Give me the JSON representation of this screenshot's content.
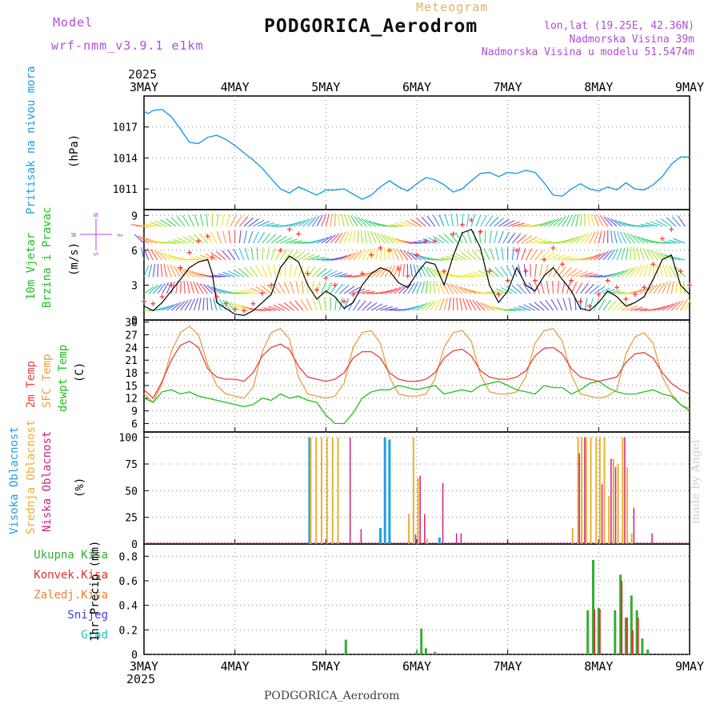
{
  "header": {
    "model_label": "Model",
    "model_name": "wrf-nmm_v3.9.1 e1km",
    "meteogram_label": "Meteogram",
    "title": "PODGORICA_Aerodrom",
    "lonlat": "lon,lat (19.25E, 42.36N)",
    "elevation": "Nadmorska Visina 39m",
    "model_elevation": "Nadmorska Visina u modelu 51.5474m",
    "year": "2025",
    "watermark": "made by Angel"
  },
  "footer": {
    "title": "PODGORICA_Aerodrom",
    "year": "2025"
  },
  "colors": {
    "pressure": "#1a9ee0",
    "wind_speed": "#000000",
    "wind_gust": "#ff3030",
    "t2m": "#e84040",
    "sfc": "#e8a040",
    "dewpt": "#20c020",
    "high_cloud": "#20a0e0",
    "mid_cloud": "#e8b030",
    "low_cloud": "#d02080",
    "total_precip": "#30b030",
    "conv_precip": "#e03030",
    "frozen_precip": "#f08030",
    "snow": "#4040e0",
    "hail": "#20c0c0",
    "axis_label_purple": "#b04cd8"
  },
  "chart_data": [
    {
      "type": "line",
      "id": "pressure",
      "ylabel_side": "Pritisak na nivou mora",
      "ylabel": "(hPa)",
      "x_ticks": [
        "3MAY",
        "4MAY",
        "5MAY",
        "6MAY",
        "7MAY",
        "8MAY",
        "9MAY"
      ],
      "ylim": [
        1009,
        1020
      ],
      "y_ticks": [
        1011,
        1014,
        1017
      ],
      "x_days": [
        0,
        0.05,
        0.1,
        0.2,
        0.3,
        0.4,
        0.5,
        0.6,
        0.7,
        0.8,
        0.9,
        1.0,
        1.1,
        1.2,
        1.3,
        1.4,
        1.5,
        1.6,
        1.7,
        1.8,
        1.9,
        2.0,
        2.1,
        2.2,
        2.3,
        2.4,
        2.5,
        2.6,
        2.7,
        2.8,
        2.9,
        3.0,
        3.1,
        3.2,
        3.3,
        3.4,
        3.5,
        3.6,
        3.7,
        3.8,
        3.9,
        4.0,
        4.1,
        4.2,
        4.3,
        4.4,
        4.5,
        4.6,
        4.7,
        4.8,
        4.9,
        5.0,
        5.1,
        5.2,
        5.3,
        5.4,
        5.5,
        5.6,
        5.7,
        5.8,
        5.9,
        6.0
      ],
      "values": [
        1018.5,
        1018.3,
        1018.6,
        1018.7,
        1018.0,
        1016.8,
        1015.5,
        1015.4,
        1016.0,
        1016.2,
        1015.8,
        1015.2,
        1014.5,
        1013.8,
        1013.0,
        1012.0,
        1011.0,
        1010.6,
        1011.2,
        1010.8,
        1010.4,
        1010.9,
        1010.9,
        1011.0,
        1010.5,
        1010.0,
        1010.4,
        1011.2,
        1011.8,
        1011.2,
        1010.8,
        1011.5,
        1012.1,
        1011.9,
        1011.4,
        1010.7,
        1011.0,
        1011.8,
        1012.5,
        1012.6,
        1012.2,
        1012.6,
        1012.5,
        1012.8,
        1012.6,
        1011.6,
        1010.4,
        1010.3,
        1011.0,
        1011.5,
        1011.0,
        1010.8,
        1011.2,
        1010.9,
        1011.6,
        1011.0,
        1010.9,
        1011.4,
        1012.2,
        1013.4,
        1014.1,
        1014.1
      ]
    },
    {
      "type": "line",
      "id": "wind",
      "ylabel_side_1": "10m Vjetar",
      "ylabel_side_2": "Brzina i Pravac",
      "ylabel": "(m/s)",
      "compass": {
        "n": "N",
        "s": "S",
        "w": "W",
        "e": "E"
      },
      "ylim": [
        0,
        9.5
      ],
      "y_ticks": [
        0,
        3,
        6,
        9
      ],
      "x_days": [
        0,
        0.1,
        0.2,
        0.3,
        0.4,
        0.5,
        0.6,
        0.7,
        0.75,
        0.8,
        0.9,
        1.0,
        1.1,
        1.2,
        1.3,
        1.4,
        1.5,
        1.6,
        1.7,
        1.8,
        1.9,
        2.0,
        2.1,
        2.2,
        2.3,
        2.4,
        2.5,
        2.6,
        2.7,
        2.8,
        2.9,
        3.0,
        3.1,
        3.2,
        3.3,
        3.4,
        3.5,
        3.6,
        3.7,
        3.8,
        3.9,
        4.0,
        4.1,
        4.2,
        4.3,
        4.4,
        4.5,
        4.6,
        4.7,
        4.8,
        4.9,
        5.0,
        5.1,
        5.2,
        5.3,
        5.4,
        5.5,
        5.6,
        5.7,
        5.8,
        5.9,
        6.0
      ],
      "speed": [
        1.2,
        0.8,
        1.5,
        2.5,
        3.5,
        4.5,
        5.0,
        5.2,
        4.0,
        1.5,
        1.0,
        0.5,
        0.4,
        0.8,
        1.5,
        2.2,
        4.5,
        5.5,
        5.0,
        3.0,
        1.8,
        2.5,
        2.0,
        1.0,
        1.5,
        3.0,
        4.0,
        4.5,
        4.2,
        3.2,
        2.8,
        4.0,
        5.0,
        4.8,
        3.0,
        5.5,
        7.5,
        7.8,
        6.2,
        3.0,
        1.5,
        2.5,
        4.5,
        3.0,
        2.5,
        3.8,
        4.5,
        3.5,
        2.5,
        1.0,
        0.8,
        1.5,
        2.5,
        2.0,
        1.2,
        1.5,
        2.0,
        3.5,
        5.2,
        5.6,
        3.0,
        2.2
      ],
      "gust": [
        1.6,
        1.4,
        2.0,
        3.0,
        4.5,
        5.8,
        6.8,
        7.2,
        5.4,
        2.0,
        1.4,
        0.9,
        0.8,
        1.4,
        2.3,
        3.0,
        6.0,
        7.8,
        7.4,
        4.0,
        2.6,
        3.6,
        3.0,
        1.6,
        2.2,
        4.0,
        5.6,
        6.2,
        6.0,
        4.4,
        3.8,
        5.6,
        6.8,
        6.8,
        4.2,
        7.4,
        8.2,
        8.6,
        7.6,
        4.2,
        2.2,
        3.4,
        6.0,
        4.2,
        3.4,
        5.2,
        6.2,
        4.8,
        3.4,
        1.6,
        1.2,
        2.2,
        3.4,
        2.8,
        1.8,
        2.2,
        2.8,
        4.8,
        7.0,
        7.8,
        4.2,
        3.0
      ]
    },
    {
      "type": "line",
      "id": "temperature",
      "ylabel_side_1": "2m Temp",
      "ylabel_side_2": "SFC Temp",
      "ylabel_side_3": "dewpt Temp",
      "ylabel": "(C)",
      "ylim": [
        4,
        30.5
      ],
      "y_ticks": [
        6,
        9,
        12,
        15,
        18,
        21,
        24,
        27,
        30
      ],
      "x_days": [
        0,
        0.1,
        0.2,
        0.3,
        0.4,
        0.5,
        0.6,
        0.7,
        0.8,
        0.9,
        1.0,
        1.1,
        1.2,
        1.3,
        1.4,
        1.5,
        1.6,
        1.7,
        1.8,
        1.9,
        2.0,
        2.1,
        2.2,
        2.3,
        2.4,
        2.5,
        2.6,
        2.7,
        2.8,
        2.9,
        3.0,
        3.1,
        3.2,
        3.3,
        3.4,
        3.5,
        3.6,
        3.7,
        3.8,
        3.9,
        4.0,
        4.1,
        4.2,
        4.3,
        4.4,
        4.5,
        4.6,
        4.7,
        4.8,
        4.9,
        5.0,
        5.1,
        5.2,
        5.3,
        5.4,
        5.5,
        5.6,
        5.7,
        5.8,
        5.9,
        6.0
      ],
      "t2m": [
        14,
        12,
        16,
        21,
        24.5,
        25.5,
        24,
        19,
        17,
        16.5,
        16.5,
        16,
        18,
        22,
        24,
        24.8,
        23.5,
        19.5,
        17,
        16.5,
        16,
        16.5,
        18,
        21.5,
        23,
        23,
        21.5,
        18,
        16.5,
        16,
        16,
        16.5,
        18,
        21.5,
        23.2,
        23.6,
        22,
        18.5,
        17,
        16.5,
        16.5,
        17,
        18.5,
        22,
        23.8,
        24,
        22.5,
        19,
        17,
        16.5,
        16,
        16.5,
        17,
        20.5,
        22.5,
        22.8,
        21.5,
        18,
        15.5,
        14,
        13
      ],
      "sfc": [
        13,
        11,
        15.5,
        23,
        27.5,
        29,
        27,
        20,
        15,
        13,
        12.5,
        12,
        14.5,
        23,
        27.5,
        28.5,
        26,
        17,
        13,
        12.5,
        12,
        12.5,
        15.5,
        24,
        27.5,
        28,
        25,
        17,
        13,
        12.5,
        12.5,
        13,
        16.5,
        24,
        27.5,
        28,
        25.5,
        17.5,
        13.5,
        13,
        13,
        13.5,
        17,
        25,
        28,
        28.5,
        25.5,
        17.5,
        13,
        12.5,
        12,
        12.5,
        14,
        22.5,
        26.5,
        27.5,
        25,
        17,
        13,
        10.5,
        9.5
      ],
      "dewpt": [
        12,
        11,
        13.5,
        14,
        13,
        13.5,
        12.5,
        12,
        11.5,
        11,
        10.5,
        10,
        10.5,
        12,
        11.5,
        13,
        12,
        12.5,
        11.5,
        11,
        8,
        6,
        6,
        8.5,
        12,
        13.5,
        14,
        14,
        15,
        14.5,
        14,
        14.5,
        15,
        13,
        13.5,
        14,
        13.5,
        15,
        15.5,
        16,
        15,
        14,
        13.5,
        13,
        15,
        14.5,
        14.5,
        13,
        14,
        15.5,
        16,
        14.5,
        13.5,
        13,
        13,
        13.5,
        14,
        13,
        12.5,
        10.5,
        9
      ]
    },
    {
      "type": "bar",
      "id": "clouds",
      "ylabel_side_1": "Visoka Oblacnost",
      "ylabel_side_2": "Srednja Oblacnost",
      "ylabel_side_3": "Niska Oblacnost",
      "ylabel": "(%)",
      "ylim": [
        0,
        105
      ],
      "y_ticks": [
        0,
        25,
        50,
        75,
        100
      ],
      "high": [
        [
          1.82,
          100
        ],
        [
          2.6,
          15
        ],
        [
          2.65,
          100
        ],
        [
          2.7,
          98
        ],
        [
          3.25,
          6
        ]
      ],
      "mid": [
        [
          1.82,
          100
        ],
        [
          1.88,
          100
        ],
        [
          1.94,
          100
        ],
        [
          2.0,
          100
        ],
        [
          2.06,
          100
        ],
        [
          2.12,
          100
        ],
        [
          2.9,
          28
        ],
        [
          2.95,
          100
        ],
        [
          3.0,
          62
        ],
        [
          3.1,
          5
        ],
        [
          4.7,
          15
        ],
        [
          4.76,
          100
        ],
        [
          4.8,
          100
        ],
        [
          4.85,
          100
        ],
        [
          4.9,
          100
        ],
        [
          4.96,
          100
        ],
        [
          5.0,
          100
        ],
        [
          5.05,
          100
        ],
        [
          5.1,
          45
        ],
        [
          5.15,
          80
        ],
        [
          5.2,
          75
        ],
        [
          5.25,
          100
        ],
        [
          5.3,
          72
        ],
        [
          5.35,
          10
        ],
        [
          6.9,
          30
        ],
        [
          6.96,
          10
        ]
      ],
      "low": [
        [
          2.28,
          100
        ],
        [
          2.4,
          14
        ],
        [
          3.0,
          9
        ],
        [
          3.05,
          64
        ],
        [
          3.1,
          28
        ],
        [
          3.3,
          57
        ],
        [
          3.45,
          10
        ],
        [
          3.5,
          10
        ],
        [
          4.8,
          85
        ],
        [
          4.86,
          100
        ],
        [
          5.05,
          56
        ],
        [
          5.15,
          80
        ],
        [
          5.2,
          72
        ],
        [
          5.3,
          100
        ],
        [
          5.4,
          34
        ],
        [
          5.6,
          10
        ],
        [
          7.3,
          100
        ],
        [
          7.35,
          60
        ],
        [
          7.4,
          48
        ],
        [
          7.6,
          10
        ],
        [
          7.65,
          10
        ]
      ]
    },
    {
      "type": "bar",
      "id": "precip",
      "legend": [
        "Ukupna Kisa",
        "Konvek.Kisa",
        "Zaledj.Kisa",
        "Snijeg",
        "Grad"
      ],
      "ylabel": "1hr Precip (mm)",
      "ylim": [
        0,
        0.9
      ],
      "y_ticks": [
        0,
        0.2,
        0.4,
        0.6,
        0.8
      ],
      "x_ticks": [
        "3MAY",
        "4MAY",
        "5MAY",
        "6MAY",
        "7MAY",
        "8MAY",
        "9MAY"
      ],
      "total": [
        [
          2.22,
          0.12
        ],
        [
          3.0,
          0.02
        ],
        [
          3.05,
          0.21
        ],
        [
          3.1,
          0.05
        ],
        [
          3.2,
          0.02
        ],
        [
          4.88,
          0.36
        ],
        [
          4.94,
          0.77
        ],
        [
          5.0,
          0.38
        ],
        [
          5.18,
          0.36
        ],
        [
          5.24,
          0.65
        ],
        [
          5.3,
          0.3
        ],
        [
          5.36,
          0.48
        ],
        [
          5.42,
          0.36
        ],
        [
          5.48,
          0.13
        ],
        [
          5.54,
          0.04
        ],
        [
          7.25,
          0.25
        ],
        [
          7.3,
          0.04
        ]
      ],
      "convective": [
        [
          4.94,
          0.37
        ],
        [
          5.0,
          0.37
        ],
        [
          5.24,
          0.6
        ],
        [
          5.3,
          0.3
        ],
        [
          5.36,
          0.2
        ],
        [
          5.42,
          0.3
        ]
      ]
    }
  ]
}
